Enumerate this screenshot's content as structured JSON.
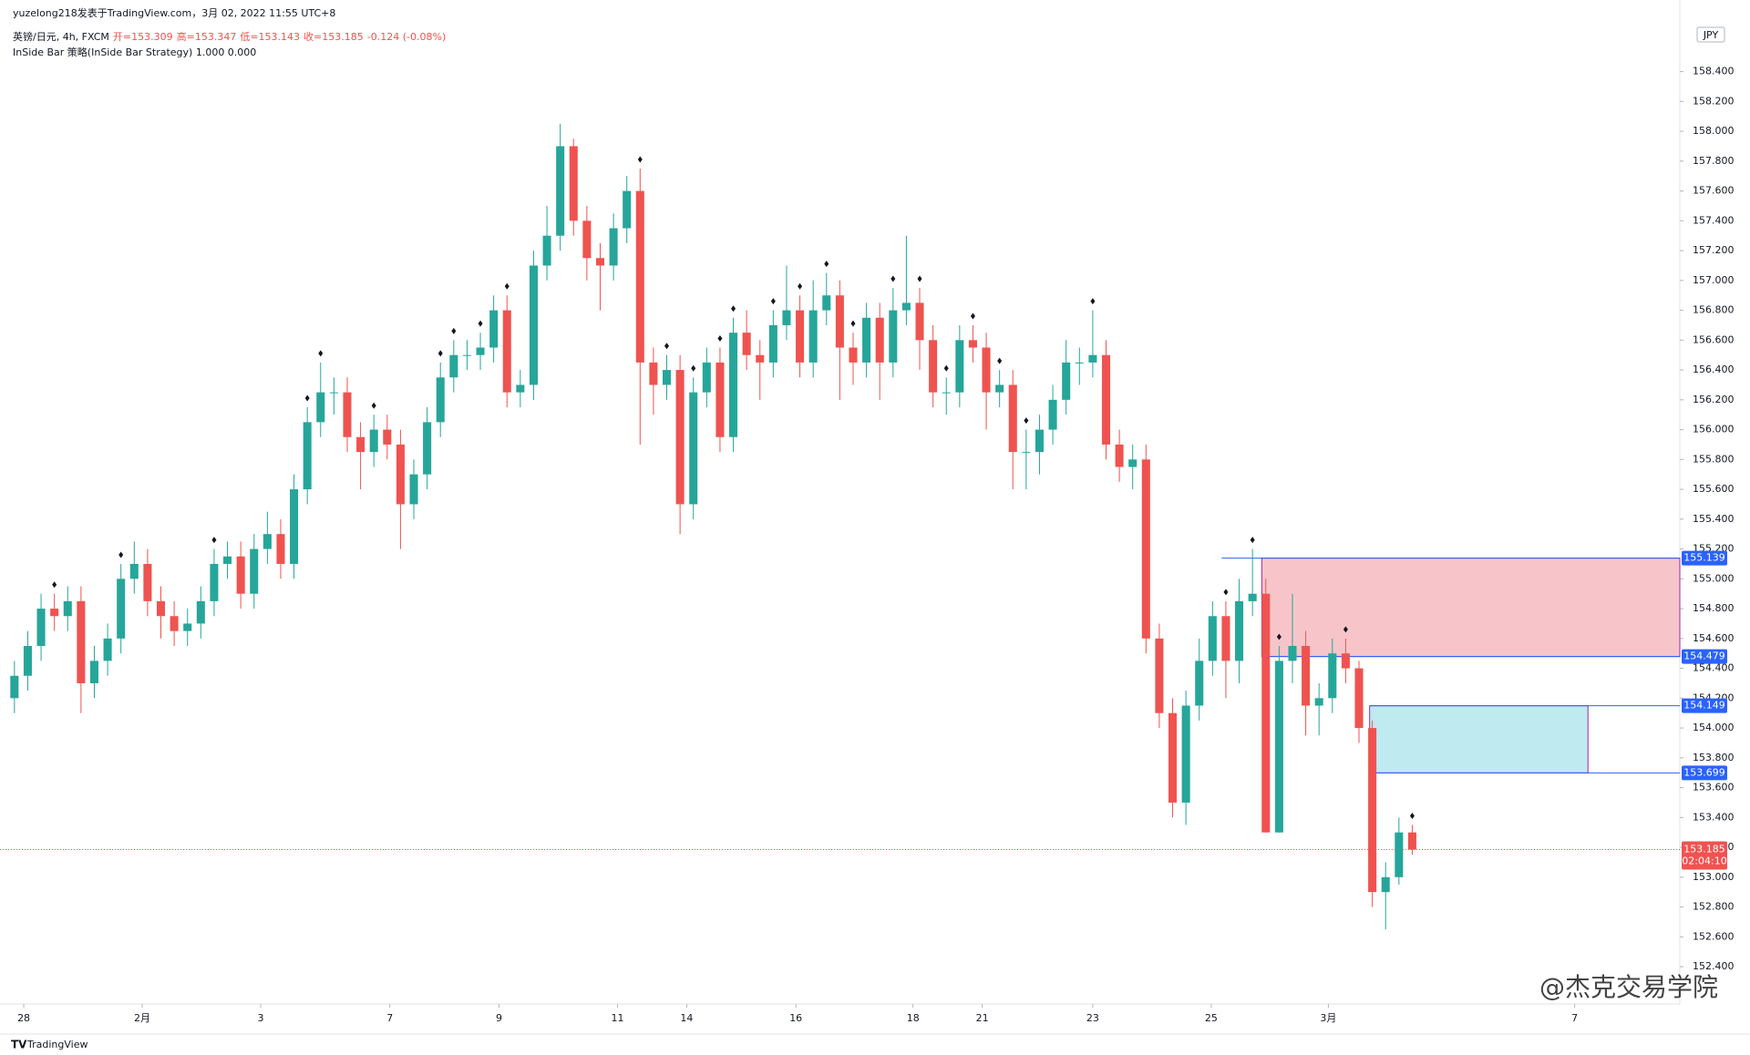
{
  "chart_data": {
    "type": "candlestick",
    "publisher": "yuzelong218发表于TradingView.com，3月 02, 2022 11:55 UTC+8",
    "symbol": "英镑/日元, 4h, FXCM",
    "ohlc_header": [
      "开=153.309",
      "高=153.347",
      "低=153.143",
      "收=153.185",
      "-0.124 (-0.08%)"
    ],
    "indicator": "InSide Bar 策略(InSide Bar Strategy)  1.000  0.000",
    "currency": "JPY",
    "watermark": "@杰克交易学院",
    "footer": "TradingView",
    "up_color": "#26a69a",
    "down_color": "#ef5350",
    "open": [
      154.2,
      154.35,
      154.55,
      154.8,
      154.75,
      154.85,
      154.3,
      154.45,
      154.6,
      155.0,
      155.1,
      154.85,
      154.75,
      154.65,
      154.7,
      154.85,
      155.1,
      155.15,
      154.9,
      155.2,
      155.3,
      155.1,
      155.6,
      156.05,
      156.25,
      156.25,
      155.95,
      155.85,
      156.0,
      155.9,
      155.5,
      155.7,
      156.05,
      156.35,
      156.5,
      156.5,
      156.55,
      156.8,
      156.25,
      156.3,
      157.1,
      157.3,
      157.9,
      157.4,
      157.15,
      157.1,
      157.35,
      157.6,
      156.45,
      156.3,
      156.4,
      155.5,
      156.25,
      156.45,
      155.95,
      156.65,
      156.5,
      156.45,
      156.7,
      156.8,
      156.45,
      156.8,
      156.9,
      156.55,
      156.45,
      156.75,
      156.45,
      156.8,
      156.85,
      156.6,
      156.25,
      156.25,
      156.6,
      156.55,
      156.25,
      156.3,
      155.85,
      155.85,
      156.0,
      156.2,
      156.45,
      156.45,
      156.5,
      155.9,
      155.75,
      155.8,
      154.6,
      154.1,
      153.5,
      154.15,
      154.45,
      154.75,
      154.45,
      154.85,
      154.9,
      153.3,
      154.45,
      154.55,
      154.15,
      154.2,
      154.5,
      154.4,
      154.0,
      152.9,
      153.0,
      153.3
    ],
    "high": [
      154.45,
      154.65,
      154.9,
      154.9,
      154.95,
      154.95,
      154.55,
      154.7,
      155.1,
      155.25,
      155.2,
      154.95,
      154.85,
      154.8,
      154.95,
      155.2,
      155.25,
      155.25,
      155.3,
      155.45,
      155.4,
      155.7,
      156.15,
      156.45,
      156.35,
      156.35,
      156.05,
      156.1,
      156.1,
      156.0,
      155.8,
      156.15,
      156.45,
      156.6,
      156.6,
      156.65,
      156.9,
      156.9,
      156.4,
      157.2,
      157.5,
      158.05,
      157.95,
      157.5,
      157.25,
      157.45,
      157.7,
      157.75,
      156.55,
      156.5,
      156.5,
      156.35,
      156.55,
      156.55,
      156.75,
      156.8,
      156.6,
      156.8,
      157.1,
      156.9,
      157.0,
      157.05,
      157.0,
      156.65,
      156.85,
      156.85,
      156.95,
      157.3,
      156.95,
      156.7,
      156.35,
      156.7,
      156.7,
      156.65,
      156.4,
      156.4,
      156.0,
      156.1,
      156.3,
      156.6,
      156.55,
      156.8,
      156.6,
      156.0,
      155.9,
      155.9,
      154.7,
      154.2,
      154.25,
      154.6,
      154.85,
      154.85,
      155.0,
      155.2,
      155.0,
      154.55,
      154.9,
      154.65,
      154.3,
      154.6,
      154.6,
      154.45,
      154.05,
      153.1,
      153.4,
      153.35
    ],
    "low": [
      154.1,
      154.25,
      154.45,
      154.65,
      154.65,
      154.1,
      154.2,
      154.35,
      154.5,
      154.9,
      154.75,
      154.6,
      154.55,
      154.55,
      154.6,
      154.75,
      155.0,
      154.8,
      154.8,
      155.1,
      155.0,
      155.0,
      155.5,
      155.95,
      156.1,
      155.85,
      155.6,
      155.75,
      155.8,
      155.2,
      155.4,
      155.6,
      155.95,
      156.25,
      156.4,
      156.4,
      156.45,
      156.15,
      156.15,
      156.2,
      157.0,
      157.2,
      157.3,
      157.0,
      156.8,
      157.0,
      157.25,
      155.9,
      156.1,
      156.2,
      155.3,
      155.4,
      156.15,
      155.85,
      155.85,
      156.4,
      156.2,
      156.35,
      156.6,
      156.35,
      156.35,
      156.7,
      156.2,
      156.3,
      156.35,
      156.2,
      156.35,
      156.7,
      156.4,
      156.15,
      156.1,
      156.15,
      156.45,
      156.0,
      156.15,
      155.6,
      155.6,
      155.7,
      155.9,
      156.1,
      156.3,
      156.35,
      155.8,
      155.65,
      155.6,
      154.5,
      154.0,
      153.4,
      153.35,
      154.05,
      154.35,
      154.2,
      154.3,
      154.75,
      153.3,
      153.3,
      154.3,
      153.95,
      153.95,
      154.1,
      154.3,
      153.9,
      152.8,
      152.65,
      152.95,
      153.15
    ],
    "close": [
      154.35,
      154.55,
      154.8,
      154.75,
      154.85,
      154.3,
      154.45,
      154.6,
      155.0,
      155.1,
      154.85,
      154.75,
      154.65,
      154.7,
      154.85,
      155.1,
      155.15,
      154.9,
      155.2,
      155.3,
      155.1,
      155.6,
      156.05,
      156.25,
      156.25,
      155.95,
      155.85,
      156.0,
      155.9,
      155.5,
      155.7,
      156.05,
      156.35,
      156.5,
      156.5,
      156.55,
      156.8,
      156.25,
      156.3,
      157.1,
      157.3,
      157.9,
      157.4,
      157.15,
      157.1,
      157.35,
      157.6,
      156.45,
      156.3,
      156.4,
      155.5,
      156.25,
      156.45,
      155.95,
      156.65,
      156.5,
      156.45,
      156.7,
      156.8,
      156.45,
      156.8,
      156.9,
      156.55,
      156.45,
      156.75,
      156.45,
      156.8,
      156.85,
      156.6,
      156.25,
      156.25,
      156.6,
      156.55,
      156.25,
      156.3,
      155.85,
      155.85,
      156.0,
      156.2,
      156.45,
      156.45,
      156.5,
      155.9,
      155.75,
      155.8,
      154.6,
      154.1,
      153.5,
      154.15,
      154.45,
      154.75,
      154.45,
      154.85,
      154.9,
      153.3,
      154.45,
      154.55,
      154.15,
      154.2,
      154.5,
      154.4,
      154.0,
      152.9,
      153.0,
      153.3,
      153.185
    ],
    "signals": [
      3,
      8,
      15,
      22,
      23,
      27,
      32,
      33,
      35,
      37,
      47,
      49,
      51,
      53,
      54,
      57,
      59,
      61,
      63,
      66,
      68,
      70,
      72,
      74,
      76,
      81,
      91,
      93,
      95,
      100,
      105
    ],
    "zones": [
      {
        "top": 155.139,
        "bottom": 154.479,
        "fill": "#f7c5c9",
        "edge": "#2962ff",
        "x": [
          93.7,
          125.1
        ]
      },
      {
        "top": 154.149,
        "bottom": 153.699,
        "fill": "#bfeaf0",
        "edge": "#2962ff",
        "x": [
          101.8,
          118.2
        ]
      }
    ],
    "last_price": 153.185,
    "countdown": "02:04:10",
    "xlim": [
      -0.4,
      125.1
    ],
    "ylim": [
      152.15,
      158.88
    ],
    "xticks": [
      {
        "value": 0.7,
        "label": "28"
      },
      {
        "value": 9.6,
        "label": "2月"
      },
      {
        "value": 18.5,
        "label": "3"
      },
      {
        "value": 28.2,
        "label": "7"
      },
      {
        "value": 36.4,
        "label": "9"
      },
      {
        "value": 45.3,
        "label": "11"
      },
      {
        "value": 50.5,
        "label": "14"
      },
      {
        "value": 58.7,
        "label": "16"
      },
      {
        "value": 67.5,
        "label": "18"
      },
      {
        "value": 72.7,
        "label": "21"
      },
      {
        "value": 81.0,
        "label": "23"
      },
      {
        "value": 89.9,
        "label": "25"
      },
      {
        "value": 98.7,
        "label": "3月"
      },
      {
        "value": 117.2,
        "label": "7"
      }
    ],
    "yticks": [
      {
        "value": 152.4,
        "label": "152.400"
      },
      {
        "value": 152.6,
        "label": "152.600"
      },
      {
        "value": 152.8,
        "label": "152.800"
      },
      {
        "value": 153.0,
        "label": "153.000"
      },
      {
        "value": 153.2,
        "label": "153.200"
      },
      {
        "value": 153.4,
        "label": "153.400"
      },
      {
        "value": 153.6,
        "label": "153.600"
      },
      {
        "value": 153.8,
        "label": "153.800"
      },
      {
        "value": 154.0,
        "label": "154.000"
      },
      {
        "value": 154.2,
        "label": "154.200"
      },
      {
        "value": 154.4,
        "label": "154.400"
      },
      {
        "value": 154.6,
        "label": "154.600"
      },
      {
        "value": 154.8,
        "label": "154.800"
      },
      {
        "value": 155.0,
        "label": "155.000"
      },
      {
        "value": 155.2,
        "label": "155.200"
      },
      {
        "value": 155.4,
        "label": "155.400"
      },
      {
        "value": 155.6,
        "label": "155.600"
      },
      {
        "value": 155.8,
        "label": "155.800"
      },
      {
        "value": 156.0,
        "label": "156.000"
      },
      {
        "value": 156.2,
        "label": "156.200"
      },
      {
        "value": 156.4,
        "label": "156.400"
      },
      {
        "value": 156.6,
        "label": "156.600"
      },
      {
        "value": 156.8,
        "label": "156.800"
      },
      {
        "value": 157.0,
        "label": "157.000"
      },
      {
        "value": 157.2,
        "label": "157.200"
      },
      {
        "value": 157.4,
        "label": "157.400"
      },
      {
        "value": 157.6,
        "label": "157.600"
      },
      {
        "value": 157.8,
        "label": "157.800"
      },
      {
        "value": 158.0,
        "label": "158.000"
      },
      {
        "value": 158.2,
        "label": "158.200"
      },
      {
        "value": 158.4,
        "label": "158.400"
      }
    ]
  }
}
